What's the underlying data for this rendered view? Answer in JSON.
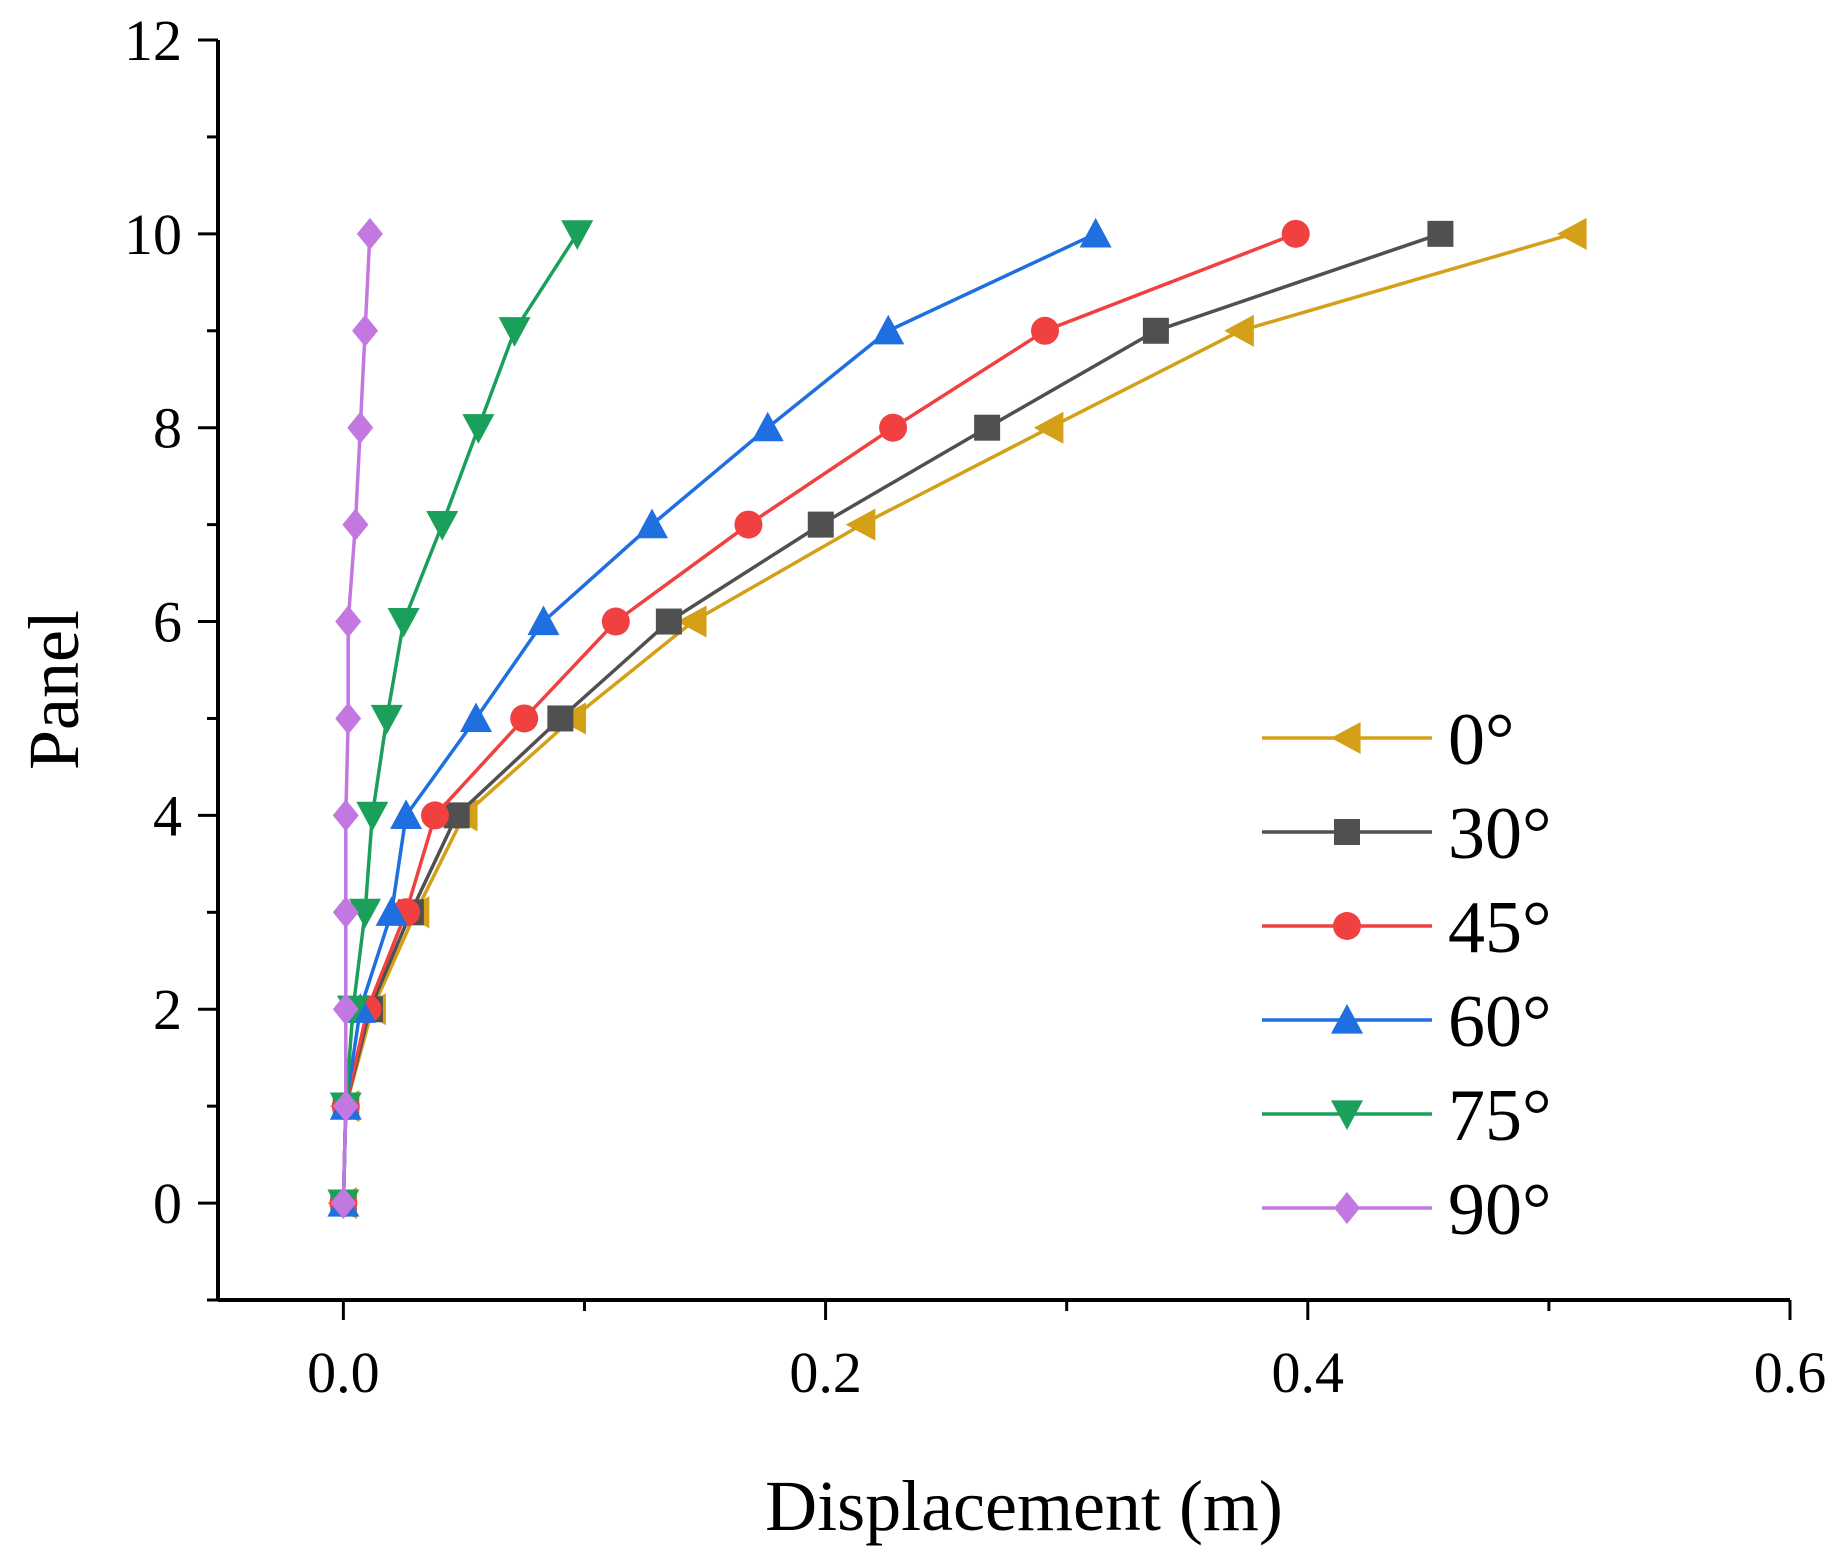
{
  "chart_data": {
    "type": "line",
    "title": "",
    "xlabel": "Displacement (m)",
    "ylabel": "Panel",
    "xlim": [
      -0.052,
      0.6
    ],
    "ylim": [
      -1,
      12
    ],
    "x_ticks": [
      0.0,
      0.2,
      0.4,
      0.6
    ],
    "x_tick_labels": [
      "0.0",
      "0.2",
      "0.4",
      "0.6"
    ],
    "y_ticks": [
      0,
      2,
      4,
      6,
      8,
      10,
      12
    ],
    "y_tick_labels": [
      "0",
      "2",
      "4",
      "6",
      "8",
      "10",
      "12"
    ],
    "grid": false,
    "legend_position": "bottom-right",
    "series": [
      {
        "name": "0°",
        "color": "#D4A017",
        "marker": "triangle-left",
        "points": [
          [
            0,
            0
          ],
          [
            0.001,
            1
          ],
          [
            0.012,
            2
          ],
          [
            0.03,
            3
          ],
          [
            0.05,
            4
          ],
          [
            0.095,
            5
          ],
          [
            0.145,
            6
          ],
          [
            0.215,
            7
          ],
          [
            0.293,
            8
          ],
          [
            0.372,
            9
          ],
          [
            0.51,
            10
          ]
        ]
      },
      {
        "name": "30°",
        "color": "#505050",
        "marker": "square",
        "points": [
          [
            0,
            0
          ],
          [
            0.001,
            1
          ],
          [
            0.011,
            2
          ],
          [
            0.028,
            3
          ],
          [
            0.047,
            4
          ],
          [
            0.09,
            5
          ],
          [
            0.135,
            6
          ],
          [
            0.198,
            7
          ],
          [
            0.267,
            8
          ],
          [
            0.337,
            9
          ],
          [
            0.455,
            10
          ]
        ]
      },
      {
        "name": "45°",
        "color": "#F04040",
        "marker": "circle",
        "points": [
          [
            0,
            0
          ],
          [
            0.001,
            1
          ],
          [
            0.01,
            2
          ],
          [
            0.026,
            3
          ],
          [
            0.038,
            4
          ],
          [
            0.075,
            5
          ],
          [
            0.113,
            6
          ],
          [
            0.168,
            7
          ],
          [
            0.228,
            8
          ],
          [
            0.291,
            9
          ],
          [
            0.395,
            10
          ]
        ]
      },
      {
        "name": "60°",
        "color": "#1F6FE0",
        "marker": "triangle-up",
        "points": [
          [
            0,
            0
          ],
          [
            0.001,
            1
          ],
          [
            0.007,
            2
          ],
          [
            0.02,
            3
          ],
          [
            0.026,
            4
          ],
          [
            0.055,
            5
          ],
          [
            0.083,
            6
          ],
          [
            0.128,
            7
          ],
          [
            0.176,
            8
          ],
          [
            0.226,
            9
          ],
          [
            0.312,
            10
          ]
        ]
      },
      {
        "name": "75°",
        "color": "#1AA05A",
        "marker": "triangle-down",
        "points": [
          [
            0,
            0
          ],
          [
            0.001,
            1
          ],
          [
            0.004,
            2
          ],
          [
            0.009,
            3
          ],
          [
            0.012,
            4
          ],
          [
            0.018,
            5
          ],
          [
            0.025,
            6
          ],
          [
            0.041,
            7
          ],
          [
            0.056,
            8
          ],
          [
            0.071,
            9
          ],
          [
            0.097,
            10
          ]
        ]
      },
      {
        "name": "90°",
        "color": "#C278E0",
        "marker": "diamond",
        "points": [
          [
            0,
            0
          ],
          [
            0.001,
            1
          ],
          [
            0.001,
            2
          ],
          [
            0.001,
            3
          ],
          [
            0.001,
            4
          ],
          [
            0.002,
            5
          ],
          [
            0.002,
            6
          ],
          [
            0.005,
            7
          ],
          [
            0.007,
            8
          ],
          [
            0.009,
            9
          ],
          [
            0.011,
            10
          ]
        ]
      }
    ]
  }
}
